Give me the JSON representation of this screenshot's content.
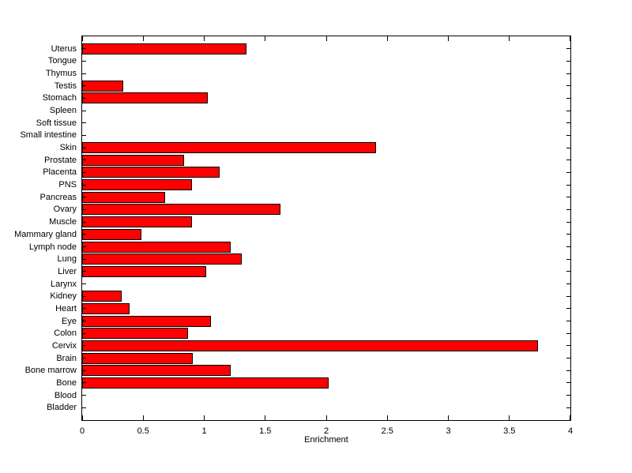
{
  "figure": {
    "background": "#ffffff",
    "axis_color": "#000000"
  },
  "chart_data": {
    "type": "bar",
    "orientation": "horizontal",
    "title": "",
    "xlabel": "Enrichment",
    "ylabel": "",
    "xlim": [
      0,
      4
    ],
    "xticks": [
      0,
      0.5,
      1,
      1.5,
      2,
      2.5,
      3,
      3.5,
      4
    ],
    "xtick_labels": [
      "0",
      "0.5",
      "1",
      "1.5",
      "2",
      "2.5",
      "3",
      "3.5",
      "4"
    ],
    "grid": false,
    "legend": null,
    "bar_color": "#ff0000",
    "bar_border_color": "#000000",
    "category_order": "top-to-bottom",
    "categories": [
      "Uterus",
      "Tongue",
      "Thymus",
      "Testis",
      "Stomach",
      "Spleen",
      "Soft tissue",
      "Small intestine",
      "Skin",
      "Prostate",
      "Placenta",
      "PNS",
      "Pancreas",
      "Ovary",
      "Muscle",
      "Mammary gland",
      "Lymph node",
      "Lung",
      "Liver",
      "Larynx",
      "Kidney",
      "Heart",
      "Eye",
      "Colon",
      "Cervix",
      "Brain",
      "Bone marrow",
      "Bone",
      "Blood",
      "Bladder"
    ],
    "values": [
      1.34,
      0,
      0,
      0.33,
      1.02,
      0,
      0,
      0,
      2.4,
      0.83,
      1.12,
      0.89,
      0.67,
      1.62,
      0.89,
      0.48,
      1.21,
      1.3,
      1.01,
      0,
      0.32,
      0.38,
      1.05,
      0.86,
      3.73,
      0.9,
      1.21,
      2.01,
      0,
      0
    ]
  }
}
